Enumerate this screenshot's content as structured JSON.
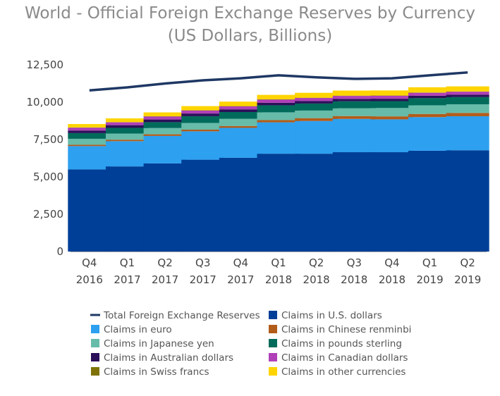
{
  "chart_data": {
    "type": "bar",
    "title": "World - Official Foreign Exchange Reserves by Currency",
    "subtitle": "(US Dollars, Billions)",
    "xlabel": "",
    "ylabel": "",
    "ylim": [
      0,
      12500
    ],
    "yticks": [
      0,
      2500,
      5000,
      7500,
      10000,
      12500
    ],
    "ytick_labels": [
      "0",
      "2,500",
      "5,000",
      "7,500",
      "10,000",
      "12,500"
    ],
    "grid": false,
    "legend_position": "bottom",
    "categories": [
      {
        "quarter": "Q4",
        "year": "2016"
      },
      {
        "quarter": "Q1",
        "year": "2017"
      },
      {
        "quarter": "Q2",
        "year": "2017"
      },
      {
        "quarter": "Q3",
        "year": "2017"
      },
      {
        "quarter": "Q4",
        "year": "2017"
      },
      {
        "quarter": "Q1",
        "year": "2018"
      },
      {
        "quarter": "Q2",
        "year": "2018"
      },
      {
        "quarter": "Q3",
        "year": "2018"
      },
      {
        "quarter": "Q4",
        "year": "2018"
      },
      {
        "quarter": "Q1",
        "year": "2019"
      },
      {
        "quarter": "Q2",
        "year": "2019"
      }
    ],
    "line": {
      "name": "Total Foreign Exchange Reserves",
      "color": "#1f3864",
      "values": [
        10790,
        10990,
        11250,
        11460,
        11600,
        11800,
        11660,
        11560,
        11600,
        11800,
        11990
      ]
    },
    "series": [
      {
        "name": "Claims in U.S. dollars",
        "color": "#003f97",
        "values": [
          5500,
          5700,
          5900,
          6150,
          6280,
          6550,
          6550,
          6650,
          6650,
          6750,
          6780
        ]
      },
      {
        "name": "Claims in euro",
        "color": "#2da0f0",
        "values": [
          1560,
          1690,
          1840,
          1900,
          2000,
          2100,
          2190,
          2230,
          2200,
          2250,
          2280
        ]
      },
      {
        "name": "Claims in Chinese renminbi",
        "color": "#b25c1a",
        "values": [
          90,
          100,
          110,
          110,
          120,
          150,
          190,
          190,
          200,
          210,
          220
        ]
      },
      {
        "name": "Claims in Japanese yen",
        "color": "#67bba9",
        "values": [
          400,
          410,
          420,
          450,
          490,
          520,
          510,
          520,
          560,
          580,
          580
        ]
      },
      {
        "name": "Claims in pounds sterling",
        "color": "#006b5b",
        "values": [
          380,
          380,
          390,
          450,
          450,
          470,
          470,
          470,
          460,
          480,
          480
        ]
      },
      {
        "name": "Claims in Australian dollars",
        "color": "#2b0f59",
        "values": [
          170,
          180,
          180,
          180,
          180,
          170,
          170,
          160,
          160,
          160,
          160
        ]
      },
      {
        "name": "Claims in Canadian dollars",
        "color": "#b040b7",
        "values": [
          190,
          190,
          200,
          200,
          200,
          210,
          200,
          200,
          200,
          200,
          200
        ]
      },
      {
        "name": "Claims in Swiss francs",
        "color": "#7e7208",
        "values": [
          16,
          16,
          16,
          17,
          17,
          18,
          17,
          17,
          16,
          17,
          17
        ]
      },
      {
        "name": "Claims in other currencies",
        "color": "#ffd400",
        "values": [
          230,
          250,
          260,
          280,
          300,
          300,
          330,
          340,
          340,
          350,
          340
        ]
      }
    ]
  }
}
